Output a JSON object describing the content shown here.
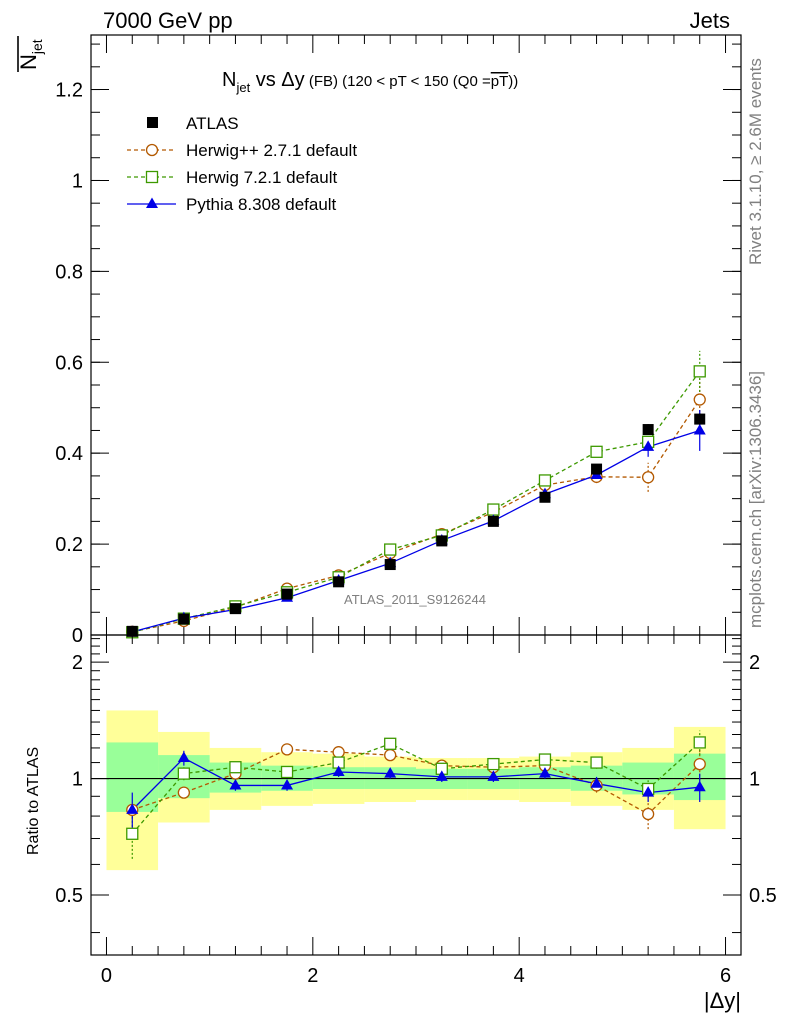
{
  "header": {
    "left": "7000 GeV pp",
    "right": "Jets"
  },
  "side_labels": {
    "rivet": "Rivet 3.1.10, ≥ 2.6M events",
    "mcplots": "mcplots.cern.ch [arXiv:1306.3436]"
  },
  "watermark": "ATLAS_2011_S9126244",
  "chart_data": [
    {
      "type": "scatter",
      "title": {
        "main": "N",
        "main_sub": "jet",
        "vs": " vs Δy",
        "fb": " (FB)",
        "cut": " (120 < pT < 150 (Q0 =",
        "q0": "pT",
        "close": "))"
      },
      "ylabel": {
        "base": "N",
        "sub": "jet"
      },
      "xlim": [
        -0.15,
        6.15
      ],
      "ylim": [
        0,
        1.32
      ],
      "yticks": [
        {
          "v": 0,
          "label": "0"
        },
        {
          "v": 0.2,
          "label": "0.2"
        },
        {
          "v": 0.4,
          "label": "0.4"
        },
        {
          "v": 0.6,
          "label": "0.6"
        },
        {
          "v": 0.8,
          "label": "0.8"
        },
        {
          "v": 1,
          "label": "1"
        },
        {
          "v": 1.2,
          "label": "1.2"
        }
      ],
      "legend_position": "top-left",
      "x": [
        0.25,
        0.75,
        1.25,
        1.75,
        2.25,
        2.75,
        3.25,
        3.75,
        4.25,
        4.75,
        5.25,
        5.75
      ],
      "series": [
        {
          "name": "ATLAS",
          "color": "#000000",
          "marker": "filled-square",
          "line": "none",
          "values": [
            0.008,
            0.035,
            0.058,
            0.09,
            0.117,
            0.155,
            0.207,
            0.25,
            0.303,
            0.365,
            0.452,
            0.475
          ],
          "errors": [
            0.002,
            0.003,
            0.003,
            0.004,
            0.004,
            0.005,
            0.006,
            0.007,
            0.008,
            0.01,
            0.012,
            0.014
          ]
        },
        {
          "name": "Herwig++ 2.7.1 default",
          "color": "#b35900",
          "marker": "open-circle",
          "line": "dashed",
          "values": [
            0.007,
            0.031,
            0.061,
            0.102,
            0.131,
            0.18,
            0.222,
            0.27,
            0.33,
            0.348,
            0.347,
            0.518
          ],
          "errors": [
            0.001,
            0.002,
            0.002,
            0.003,
            0.004,
            0.005,
            0.006,
            0.007,
            0.008,
            0.014,
            0.032,
            0.045
          ]
        },
        {
          "name": "Herwig 7.2.1 default",
          "color": "#3d9900",
          "marker": "open-square",
          "line": "dashed",
          "values": [
            0.006,
            0.036,
            0.063,
            0.094,
            0.127,
            0.188,
            0.219,
            0.276,
            0.34,
            0.403,
            0.425,
            0.58
          ],
          "errors": [
            0.001,
            0.002,
            0.002,
            0.003,
            0.004,
            0.005,
            0.006,
            0.007,
            0.008,
            0.012,
            0.02,
            0.045
          ]
        },
        {
          "name": "Pythia 8.308 default",
          "color": "#0000e6",
          "marker": "filled-triangle",
          "line": "solid",
          "values": [
            0.007,
            0.037,
            0.056,
            0.082,
            0.12,
            0.158,
            0.208,
            0.251,
            0.31,
            0.352,
            0.414,
            0.45
          ],
          "errors": [
            0.001,
            0.002,
            0.002,
            0.003,
            0.003,
            0.004,
            0.005,
            0.006,
            0.008,
            0.012,
            0.022,
            0.045
          ]
        }
      ]
    },
    {
      "type": "scatter",
      "ylabel": "Ratio to ATLAS",
      "xlabel": "|Δy|",
      "xlim": [
        -0.15,
        6.15
      ],
      "ylim": [
        0.35,
        2.35
      ],
      "yscale": "log",
      "xticks": [
        {
          "v": 0,
          "label": "0"
        },
        {
          "v": 2,
          "label": "2"
        },
        {
          "v": 4,
          "label": "4"
        },
        {
          "v": 6,
          "label": "6"
        }
      ],
      "yticks": [
        {
          "v": 0.5,
          "label": "0.5"
        },
        {
          "v": 1,
          "label": "1"
        },
        {
          "v": 2,
          "label": "2"
        }
      ],
      "bins": [
        0,
        0.5,
        1,
        1.5,
        2,
        2.5,
        3,
        3.5,
        4,
        4.5,
        5,
        5.5,
        6
      ],
      "band_yellow": [
        [
          0.58,
          1.5
        ],
        [
          0.77,
          1.32
        ],
        [
          0.83,
          1.2
        ],
        [
          0.85,
          1.17
        ],
        [
          0.86,
          1.16
        ],
        [
          0.87,
          1.14
        ],
        [
          0.88,
          1.13
        ],
        [
          0.88,
          1.13
        ],
        [
          0.87,
          1.14
        ],
        [
          0.85,
          1.17
        ],
        [
          0.83,
          1.2
        ],
        [
          0.74,
          1.36
        ]
      ],
      "band_green": [
        [
          0.82,
          1.24
        ],
        [
          0.89,
          1.15
        ],
        [
          0.92,
          1.1
        ],
        [
          0.93,
          1.08
        ],
        [
          0.94,
          1.07
        ],
        [
          0.94,
          1.07
        ],
        [
          0.94,
          1.06
        ],
        [
          0.94,
          1.06
        ],
        [
          0.94,
          1.07
        ],
        [
          0.93,
          1.08
        ],
        [
          0.91,
          1.1
        ],
        [
          0.88,
          1.16
        ]
      ],
      "x": [
        0.25,
        0.75,
        1.25,
        1.75,
        2.25,
        2.75,
        3.25,
        3.75,
        4.25,
        4.75,
        5.25,
        5.75
      ],
      "series": [
        {
          "name": "Herwig++ 2.7.1 default",
          "color": "#b35900",
          "marker": "open-circle",
          "line": "dashed",
          "values": [
            0.83,
            0.92,
            1.03,
            1.19,
            1.17,
            1.15,
            1.08,
            1.07,
            1.08,
            0.96,
            0.81,
            1.09
          ],
          "errors": [
            0.04,
            0.03,
            0.03,
            0.03,
            0.03,
            0.03,
            0.03,
            0.03,
            0.03,
            0.04,
            0.07,
            0.1
          ]
        },
        {
          "name": "Herwig 7.2.1 default",
          "color": "#3d9900",
          "marker": "open-square",
          "line": "dashed",
          "values": [
            0.72,
            1.03,
            1.07,
            1.04,
            1.1,
            1.23,
            1.06,
            1.09,
            1.12,
            1.1,
            0.94,
            1.24
          ],
          "errors": [
            0.1,
            0.04,
            0.03,
            0.03,
            0.03,
            0.03,
            0.03,
            0.03,
            0.03,
            0.04,
            0.05,
            0.09
          ]
        },
        {
          "name": "Pythia 8.308 default",
          "color": "#0000e6",
          "marker": "filled-triangle",
          "line": "solid",
          "values": [
            0.83,
            1.13,
            0.96,
            0.96,
            1.04,
            1.03,
            1.01,
            1.01,
            1.03,
            0.97,
            0.92,
            0.95
          ],
          "errors": [
            0.09,
            0.05,
            0.03,
            0.03,
            0.03,
            0.03,
            0.03,
            0.03,
            0.03,
            0.04,
            0.05,
            0.08
          ]
        }
      ]
    }
  ]
}
